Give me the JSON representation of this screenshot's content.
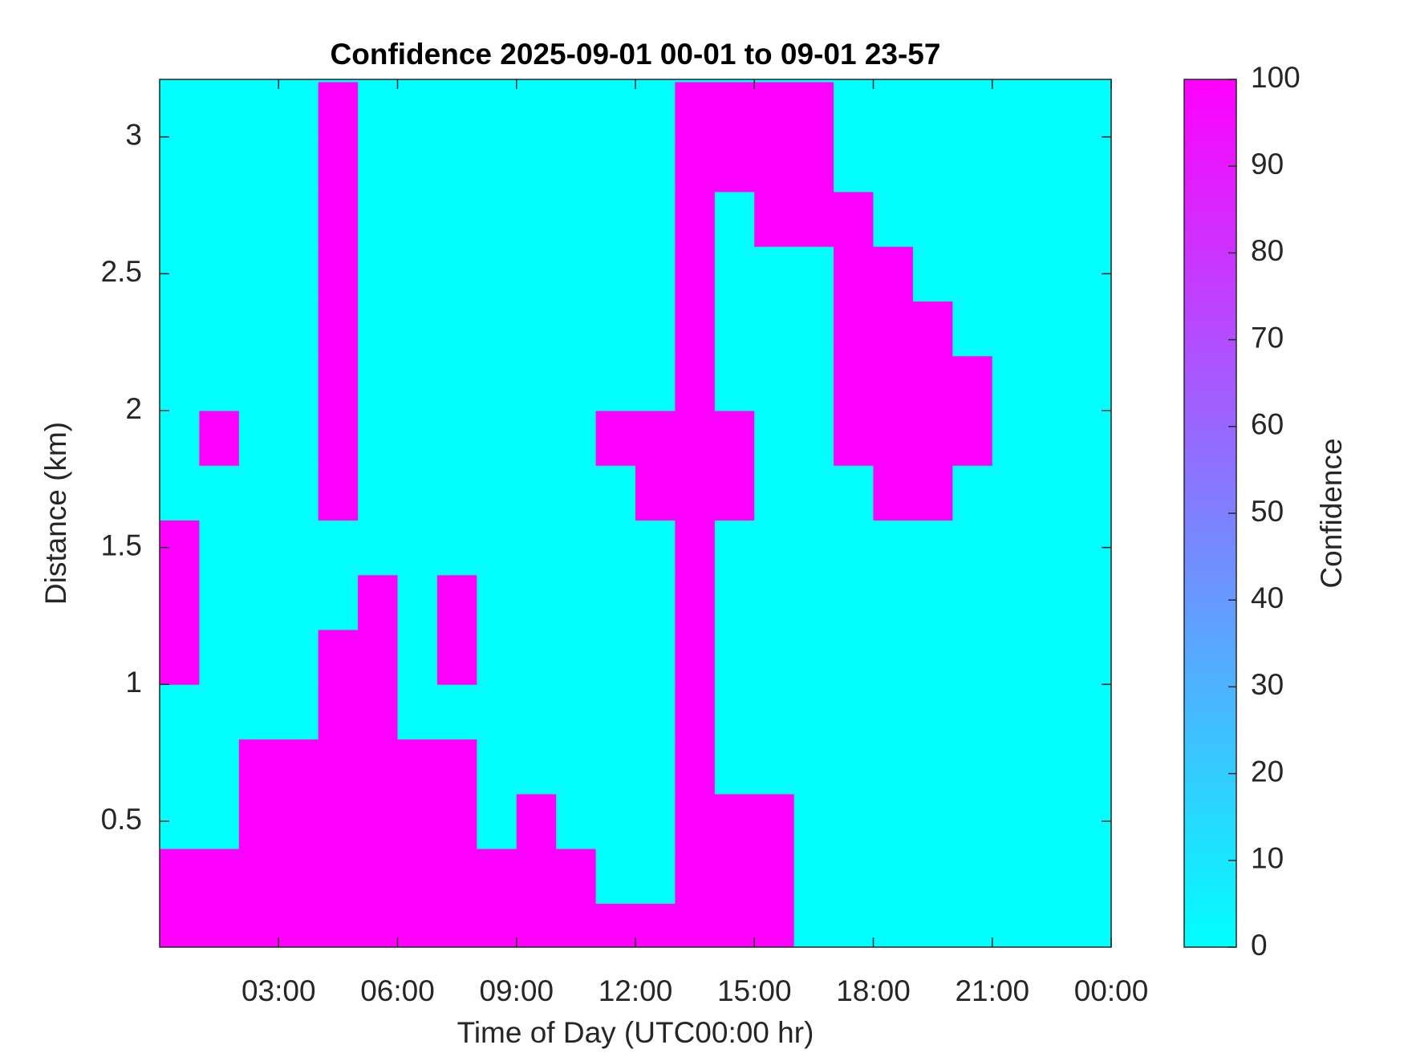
{
  "chart_data": {
    "type": "heatmap",
    "title": "Confidence 2025-09-01 00-01 to 09-01 23-57",
    "x_label": "Time of Day (UTC00:00 hr)",
    "y_label": "Distance (km)",
    "colorbar_label": "Confidence",
    "colormap": [
      "#00ffff",
      "#ff00ff"
    ],
    "clim": [
      0,
      100
    ],
    "cticks": [
      0,
      10,
      20,
      30,
      40,
      50,
      60,
      70,
      80,
      90,
      100
    ],
    "xlim": [
      0,
      24
    ],
    "xticks": [
      {
        "value": 3,
        "label": "03:00"
      },
      {
        "value": 6,
        "label": "06:00"
      },
      {
        "value": 9,
        "label": "09:00"
      },
      {
        "value": 12,
        "label": "12:00"
      },
      {
        "value": 15,
        "label": "15:00"
      },
      {
        "value": 18,
        "label": "18:00"
      },
      {
        "value": 21,
        "label": "21:00"
      },
      {
        "value": 24,
        "label": "00:00"
      }
    ],
    "ylim": [
      0.04,
      3.21
    ],
    "yticks": [
      0.5,
      1,
      1.5,
      2,
      2.5,
      3
    ],
    "x": [
      0.5,
      1.5,
      2.5,
      3.5,
      4.5,
      5.5,
      6.5,
      7.5,
      8.5,
      9.5,
      10.5,
      11.5,
      12.5,
      13.5,
      14.5,
      15.5,
      16.5,
      17.5,
      18.5,
      19.5,
      20.5,
      21.5,
      22.5,
      23.5
    ],
    "y": [
      0.1,
      0.3,
      0.5,
      0.7,
      0.9,
      1.1,
      1.3,
      1.5,
      1.7,
      1.9,
      2.1,
      2.3,
      2.5,
      2.7,
      2.9,
      3.1
    ],
    "z": [
      [
        100,
        100,
        100,
        100,
        100,
        100,
        100,
        100,
        100,
        100,
        100,
        100,
        100,
        100,
        100,
        100,
        0,
        0,
        0,
        0,
        0,
        0,
        0,
        0
      ],
      [
        100,
        100,
        100,
        100,
        100,
        100,
        100,
        100,
        100,
        100,
        100,
        0,
        0,
        100,
        100,
        100,
        0,
        0,
        0,
        0,
        0,
        0,
        0,
        0
      ],
      [
        0,
        0,
        100,
        100,
        100,
        100,
        100,
        100,
        0,
        100,
        0,
        0,
        0,
        100,
        100,
        100,
        0,
        0,
        0,
        0,
        0,
        0,
        0,
        0
      ],
      [
        0,
        0,
        100,
        100,
        100,
        100,
        100,
        100,
        0,
        0,
        0,
        0,
        0,
        100,
        0,
        0,
        0,
        0,
        0,
        0,
        0,
        0,
        0,
        0
      ],
      [
        0,
        0,
        0,
        0,
        100,
        100,
        0,
        0,
        0,
        0,
        0,
        0,
        0,
        100,
        0,
        0,
        0,
        0,
        0,
        0,
        0,
        0,
        0,
        0
      ],
      [
        100,
        0,
        0,
        0,
        100,
        100,
        0,
        100,
        0,
        0,
        0,
        0,
        0,
        100,
        0,
        0,
        0,
        0,
        0,
        0,
        0,
        0,
        0,
        0
      ],
      [
        100,
        0,
        0,
        0,
        0,
        100,
        0,
        100,
        0,
        0,
        0,
        0,
        0,
        100,
        0,
        0,
        0,
        0,
        0,
        0,
        0,
        0,
        0,
        0
      ],
      [
        100,
        0,
        0,
        0,
        0,
        0,
        0,
        0,
        0,
        0,
        0,
        0,
        0,
        100,
        0,
        0,
        0,
        0,
        0,
        0,
        0,
        0,
        0,
        0
      ],
      [
        0,
        0,
        0,
        0,
        100,
        0,
        0,
        0,
        0,
        0,
        0,
        0,
        100,
        100,
        100,
        0,
        0,
        0,
        100,
        100,
        0,
        0,
        0,
        0
      ],
      [
        0,
        100,
        0,
        0,
        100,
        0,
        0,
        0,
        0,
        0,
        0,
        100,
        100,
        100,
        100,
        0,
        0,
        100,
        100,
        100,
        100,
        0,
        0,
        0
      ],
      [
        0,
        0,
        0,
        0,
        100,
        0,
        0,
        0,
        0,
        0,
        0,
        0,
        0,
        100,
        0,
        0,
        0,
        100,
        100,
        100,
        100,
        0,
        0,
        0
      ],
      [
        0,
        0,
        0,
        0,
        100,
        0,
        0,
        0,
        0,
        0,
        0,
        0,
        0,
        100,
        0,
        0,
        0,
        100,
        100,
        100,
        0,
        0,
        0,
        0
      ],
      [
        0,
        0,
        0,
        0,
        100,
        0,
        0,
        0,
        0,
        0,
        0,
        0,
        0,
        100,
        0,
        0,
        0,
        100,
        100,
        0,
        0,
        0,
        0,
        0
      ],
      [
        0,
        0,
        0,
        0,
        100,
        0,
        0,
        0,
        0,
        0,
        0,
        0,
        0,
        100,
        0,
        100,
        100,
        100,
        0,
        0,
        0,
        0,
        0,
        0
      ],
      [
        0,
        0,
        0,
        0,
        100,
        0,
        0,
        0,
        0,
        0,
        0,
        0,
        0,
        100,
        100,
        100,
        100,
        0,
        0,
        0,
        0,
        0,
        0,
        0
      ],
      [
        0,
        0,
        0,
        0,
        100,
        0,
        0,
        0,
        0,
        0,
        0,
        0,
        0,
        100,
        100,
        100,
        100,
        0,
        0,
        0,
        0,
        0,
        0,
        0
      ]
    ]
  }
}
